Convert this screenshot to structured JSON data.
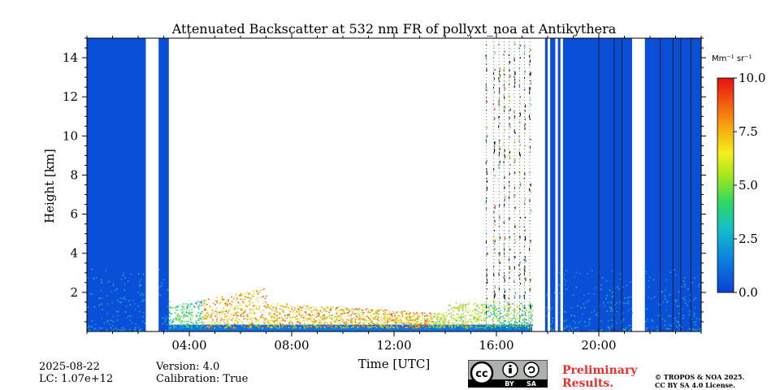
{
  "chart_data": {
    "type": "heatmap",
    "title": "Attenuated Backscatter at 532 nm FR of pollyxt_noa at Antikythera",
    "xlabel": "Time [UTC]",
    "ylabel": "Height [km]",
    "xlim_hours": [
      0,
      24
    ],
    "ylim_km": [
      0,
      15
    ],
    "x_ticks": [
      {
        "hour": 4,
        "label": "04:00"
      },
      {
        "hour": 8,
        "label": "08:00"
      },
      {
        "hour": 12,
        "label": "12:00"
      },
      {
        "hour": 16,
        "label": "16:00"
      },
      {
        "hour": 20,
        "label": "20:00"
      }
    ],
    "y_ticks": [
      {
        "km": 2,
        "label": "2"
      },
      {
        "km": 4,
        "label": "4"
      },
      {
        "km": 6,
        "label": "6"
      },
      {
        "km": 8,
        "label": "8"
      },
      {
        "km": 10,
        "label": "10"
      },
      {
        "km": 12,
        "label": "12"
      },
      {
        "km": 14,
        "label": "14"
      }
    ],
    "colorbar": {
      "unit_label": "Mm⁻¹ sr⁻¹",
      "range": [
        0,
        10
      ],
      "ticks": [
        {
          "value": 0,
          "label": "0.0"
        },
        {
          "value": 2.5,
          "label": "2.5"
        },
        {
          "value": 5,
          "label": "5.0"
        },
        {
          "value": 7.5,
          "label": "7.5"
        },
        {
          "value": 10,
          "label": "10.0"
        }
      ]
    },
    "background_periods_hours": [
      [
        0,
        2.3
      ],
      [
        2.8,
        3.2
      ],
      [
        17.9,
        18.0
      ],
      [
        18.1,
        18.3
      ],
      [
        18.4,
        18.5
      ],
      [
        18.6,
        21.3
      ],
      [
        21.8,
        24
      ]
    ],
    "data_gap_lines_hours": [
      20.0,
      20.6,
      20.9,
      22.4,
      22.9,
      23.2,
      23.6
    ],
    "aerosol_layer": {
      "time_range_hours": [
        3.2,
        17.4
      ],
      "height_range_km": [
        0.05,
        2.5
      ],
      "peak_value": 9.5
    },
    "noisy_profiles_hours": [
      15.6,
      15.9,
      16.1,
      16.3,
      16.5,
      16.7,
      16.9,
      17.1,
      17.3
    ]
  },
  "footer": {
    "date": "2025-08-22",
    "lc": "LC: 1.07e+12",
    "version": "Version: 4.0",
    "calibration": "Calibration: True",
    "preliminary_line1": "Preliminary",
    "preliminary_line2": "Results.",
    "copyright_line1": "© TROPOS & NOA 2025.",
    "copyright_line2": "CC BY SA 4.0 License.",
    "license_badge": "cc-by-sa-badge",
    "badge_by": "BY",
    "badge_sa": "SA"
  },
  "colors": {
    "background_signal": "#0a4fd8",
    "axis": "#000000",
    "preliminary": "#e8312a"
  }
}
